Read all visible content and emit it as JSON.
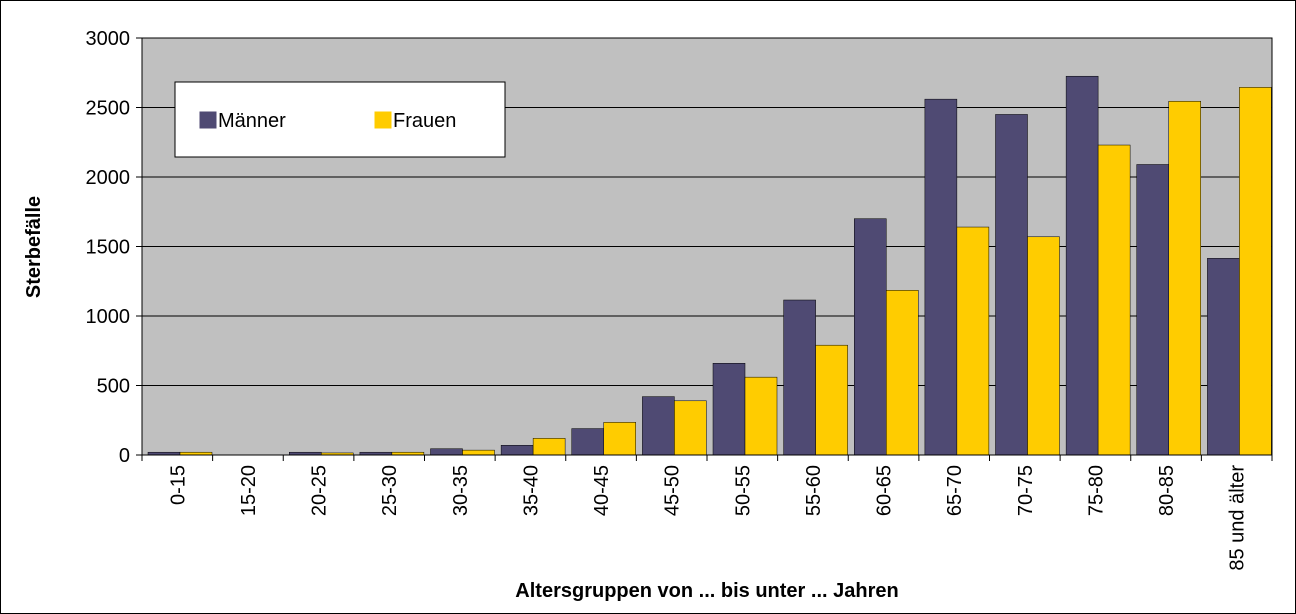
{
  "chart_data": {
    "type": "bar",
    "y_label": "Sterbefälle",
    "x_label": "Altersgruppen von ... bis unter ... Jahren",
    "categories": [
      "0-15",
      "15-20",
      "20-25",
      "25-30",
      "30-35",
      "35-40",
      "40-45",
      "45-50",
      "50-55",
      "55-60",
      "60-65",
      "65-70",
      "70-75",
      "75-80",
      "80-85",
      "85 und älter"
    ],
    "series": [
      {
        "name": "Männer",
        "color": "#4f4a73",
        "values": [
          20,
          0,
          20,
          20,
          45,
          70,
          190,
          420,
          660,
          1115,
          1700,
          2560,
          2450,
          2725,
          2090,
          1415
        ]
      },
      {
        "name": "Frauen",
        "color": "#ffcc00",
        "values": [
          20,
          0,
          15,
          20,
          35,
          120,
          235,
          390,
          560,
          790,
          1185,
          1640,
          1570,
          2230,
          2545,
          2645
        ]
      }
    ],
    "ylim": [
      0,
      3000
    ],
    "yticks": [
      0,
      500,
      1000,
      1500,
      2000,
      2500,
      3000
    ],
    "grid": true,
    "legend": "upper left",
    "background": "#c0c0c0"
  }
}
